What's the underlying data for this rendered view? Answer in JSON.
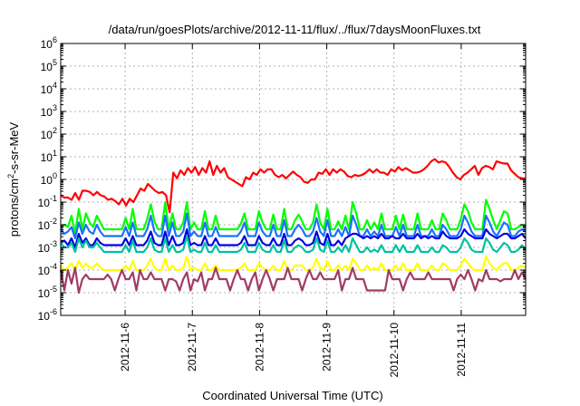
{
  "chart_data": {
    "type": "line",
    "title": "/data/run/goesPlots/archive/2012-11-11/flux/../flux/7daysMoonFluxes.txt",
    "xlabel": "Coordinated Universal Time (UTC)",
    "ylabel_parts": [
      "protons/cm",
      "2",
      "-s-sr-MeV"
    ],
    "yscale": "log",
    "ylim_exp": [
      -6,
      6
    ],
    "y_ticks": [
      {
        "base": "10",
        "exp": "-6"
      },
      {
        "base": "10",
        "exp": "-5"
      },
      {
        "base": "10",
        "exp": "-4"
      },
      {
        "base": "10",
        "exp": "-3"
      },
      {
        "base": "10",
        "exp": "-2"
      },
      {
        "base": "10",
        "exp": "-1"
      },
      {
        "base": "10",
        "exp": "0"
      },
      {
        "base": "10",
        "exp": "1"
      },
      {
        "base": "10",
        "exp": "2"
      },
      {
        "base": "10",
        "exp": "3"
      },
      {
        "base": "10",
        "exp": "4"
      },
      {
        "base": "10",
        "exp": "5"
      },
      {
        "base": "10",
        "exp": "6"
      }
    ],
    "x_start": "2012-11-05T01:00",
    "x_end": "2012-11-11T23:00",
    "x_ticks": [
      "2012-11-6",
      "2012-11-7",
      "2012-11-8",
      "2012-11-9",
      "2012-11-10",
      "2012-11-11"
    ],
    "grid": true,
    "series": [
      {
        "color": "#ff0000",
        "log_values": [
          -0.7,
          -0.8,
          -0.8,
          -0.9,
          -0.6,
          -0.9,
          -0.5,
          -0.5,
          -0.55,
          -0.7,
          -0.55,
          -0.7,
          -0.75,
          -0.9,
          -0.85,
          -0.95,
          -1.1,
          -0.85,
          -1.15,
          -0.85,
          -1.0,
          -0.7,
          -0.4,
          -0.5,
          -0.2,
          -0.35,
          -0.5,
          -0.6,
          -0.55,
          -0.7,
          -1.45,
          0.3,
          0.05,
          0.4,
          0.2,
          0.5,
          0.3,
          0.55,
          0.2,
          0.5,
          0.3,
          0.8,
          0.2,
          0.6,
          0.3,
          0.5,
          0.1,
          0.0,
          -0.1,
          -0.2,
          -0.3,
          0.1,
          0.0,
          0.3,
          0.2,
          0.45,
          0.3,
          0.45,
          0.45,
          0.2,
          0.1,
          0.2,
          0.05,
          0.2,
          0.35,
          0.2,
          0.1,
          -0.1,
          -0.15,
          0.0,
          0.0,
          0.3,
          0.25,
          0.45,
          0.2,
          0.45,
          0.3,
          0.45,
          0.35,
          0.15,
          0.1,
          0.2,
          0.15,
          0.2,
          0.3,
          0.45,
          0.3,
          0.45,
          0.3,
          0.3,
          0.2,
          0.45,
          0.35,
          0.55,
          0.4,
          0.5,
          0.4,
          0.3,
          0.3,
          0.35,
          0.45,
          0.6,
          0.8,
          0.9,
          0.75,
          0.8,
          0.75,
          0.55,
          0.3,
          0.1,
          0.0,
          0.2,
          0.3,
          0.45,
          0.6,
          0.2,
          0.5,
          0.6,
          0.55,
          0.45,
          0.8,
          0.75,
          0.7,
          0.7,
          0.4,
          0.25,
          0.1,
          0.05,
          0.05
        ]
      },
      {
        "color": "#00ff00",
        "log_values": [
          -2.1,
          -2.0,
          -2.1,
          -1.6,
          -2.4,
          -1.3,
          -2.2,
          -1.5,
          -1.9,
          -2.1,
          -1.6,
          -1.9,
          -2.2,
          -2.2,
          -2.2,
          -2.2,
          -2.2,
          -2.2,
          -1.7,
          -2.2,
          -1.3,
          -2.2,
          -2.2,
          -2.2,
          -1.75,
          -1.1,
          -1.85,
          -2.2,
          -2.2,
          -1.0,
          -2.2,
          -1.5,
          -2.2,
          -2.2,
          -1.9,
          -1.0,
          -2.2,
          -1.9,
          -2.2,
          -2.2,
          -1.4,
          -2.2,
          -2.2,
          -1.6,
          -2.2,
          -2.2,
          -2.2,
          -2.2,
          -2.2,
          -2.2,
          -1.95,
          -1.5,
          -2.2,
          -2.2,
          -2.2,
          -1.4,
          -1.9,
          -2.2,
          -2.2,
          -1.55,
          -2.2,
          -2.2,
          -1.3,
          -2.2,
          -2.2,
          -1.8,
          -1.55,
          -1.85,
          -2.2,
          -2.2,
          -1.9,
          -1.1,
          -1.9,
          -2.2,
          -1.3,
          -2.2,
          -2.2,
          -1.85,
          -2.2,
          -1.6,
          -2.2,
          -1.0,
          -1.5,
          -2.2,
          -2.2,
          -1.8,
          -2.2,
          -1.9,
          -2.2,
          -1.5,
          -2.2,
          -2.2,
          -2.2,
          -1.6,
          -2.2,
          -1.55,
          -2.2,
          -2.2,
          -2.2,
          -1.5,
          -2.2,
          -2.2,
          -2.2,
          -1.8,
          -2.2,
          -2.2,
          -1.5,
          -1.8,
          -2.2,
          -2.2,
          -2.2,
          -1.75,
          -1.1,
          -1.4,
          -1.9,
          -2.2,
          -2.2,
          -2.2,
          -0.9,
          -1.3,
          -1.8,
          -2.2,
          -1.8,
          -1.4,
          -1.5,
          -2.2,
          -2.2,
          -2.1,
          -2.0,
          -2.1
        ]
      },
      {
        "color": "#1a70ff",
        "log_values": [
          -2.2,
          -2.4,
          -2.3,
          -2.1,
          -2.6,
          -1.9,
          -2.4,
          -2.0,
          -2.3,
          -2.4,
          -2.0,
          -2.3,
          -2.5,
          -2.5,
          -2.5,
          -2.5,
          -2.5,
          -2.5,
          -2.1,
          -2.5,
          -1.9,
          -2.5,
          -2.5,
          -2.5,
          -2.2,
          -1.6,
          -2.3,
          -2.5,
          -2.5,
          -1.6,
          -2.5,
          -1.9,
          -2.5,
          -2.5,
          -2.3,
          -1.5,
          -2.5,
          -2.3,
          -2.5,
          -2.5,
          -1.9,
          -2.5,
          -2.5,
          -2.1,
          -2.5,
          -2.5,
          -2.5,
          -2.5,
          -2.5,
          -2.5,
          -2.3,
          -1.9,
          -2.5,
          -2.5,
          -2.5,
          -1.9,
          -2.3,
          -2.5,
          -2.5,
          -2.0,
          -2.5,
          -2.5,
          -1.8,
          -2.5,
          -2.5,
          -2.2,
          -2.0,
          -2.2,
          -2.5,
          -2.5,
          -2.3,
          -1.7,
          -2.3,
          -2.5,
          -1.8,
          -2.5,
          -2.5,
          -2.2,
          -2.5,
          -2.1,
          -2.5,
          -1.6,
          -2.0,
          -2.5,
          -2.5,
          -2.2,
          -2.5,
          -2.3,
          -2.5,
          -2.0,
          -2.5,
          -2.5,
          -2.5,
          -2.1,
          -2.5,
          -2.0,
          -2.5,
          -2.5,
          -2.5,
          -2.0,
          -2.5,
          -2.5,
          -2.5,
          -2.2,
          -2.5,
          -2.5,
          -2.0,
          -2.2,
          -2.5,
          -2.5,
          -2.5,
          -2.2,
          -1.6,
          -1.9,
          -2.3,
          -2.5,
          -2.5,
          -2.5,
          -1.6,
          -1.9,
          -2.3,
          -2.5,
          -2.2,
          -1.9,
          -2.0,
          -2.5,
          -2.5,
          -2.3,
          -2.2,
          -2.3
        ]
      },
      {
        "color": "#0000dd",
        "log_values": [
          -2.8,
          -2.7,
          -2.9,
          -2.6,
          -3.0,
          -2.4,
          -2.8,
          -2.6,
          -2.9,
          -2.9,
          -2.6,
          -2.8,
          -2.9,
          -2.9,
          -2.9,
          -2.9,
          -2.9,
          -2.9,
          -2.6,
          -2.9,
          -2.5,
          -2.9,
          -2.9,
          -2.9,
          -2.7,
          -2.3,
          -2.8,
          -2.9,
          -2.9,
          -2.3,
          -2.9,
          -2.5,
          -2.9,
          -2.9,
          -2.8,
          -2.2,
          -2.9,
          -2.8,
          -2.9,
          -2.9,
          -2.5,
          -2.9,
          -2.9,
          -2.6,
          -2.9,
          -2.9,
          -2.9,
          -2.9,
          -2.9,
          -2.9,
          -2.8,
          -2.5,
          -2.9,
          -2.9,
          -2.9,
          -2.5,
          -2.8,
          -2.9,
          -2.9,
          -2.6,
          -2.9,
          -2.9,
          -2.4,
          -2.9,
          -2.9,
          -2.7,
          -2.6,
          -2.7,
          -2.9,
          -2.9,
          -2.8,
          -2.3,
          -2.8,
          -2.9,
          -2.4,
          -2.9,
          -2.9,
          -2.7,
          -2.9,
          -2.6,
          -2.5,
          -2.4,
          -2.4,
          -2.5,
          -2.6,
          -2.5,
          -2.6,
          -2.5,
          -2.6,
          -2.4,
          -2.6,
          -2.6,
          -2.5,
          -2.6,
          -2.6,
          -2.4,
          -2.6,
          -2.6,
          -2.6,
          -2.4,
          -2.6,
          -2.5,
          -2.6,
          -2.5,
          -2.6,
          -2.6,
          -2.3,
          -2.5,
          -2.6,
          -2.6,
          -2.6,
          -2.5,
          -2.2,
          -2.4,
          -2.5,
          -2.6,
          -2.6,
          -2.6,
          -2.2,
          -2.4,
          -2.5,
          -2.6,
          -2.5,
          -2.4,
          -2.4,
          -2.6,
          -2.6,
          -2.5,
          -2.4,
          -2.6
        ]
      },
      {
        "color": "#00c0a0",
        "log_values": [
          -2.8,
          -3.0,
          -3.0,
          -2.8,
          -3.2,
          -2.6,
          -3.0,
          -2.7,
          -3.0,
          -3.0,
          -2.8,
          -3.0,
          -3.2,
          -3.2,
          -3.2,
          -3.2,
          -3.2,
          -3.2,
          -2.9,
          -3.2,
          -2.7,
          -3.2,
          -3.2,
          -3.2,
          -3.0,
          -2.6,
          -3.1,
          -3.2,
          -3.2,
          -2.6,
          -3.2,
          -2.9,
          -3.2,
          -3.2,
          -3.1,
          -2.5,
          -3.2,
          -3.1,
          -3.2,
          -3.2,
          -2.8,
          -3.2,
          -3.2,
          -2.9,
          -3.2,
          -3.2,
          -3.2,
          -3.2,
          -3.2,
          -3.2,
          -3.1,
          -2.8,
          -3.2,
          -3.2,
          -3.2,
          -2.8,
          -3.1,
          -3.2,
          -3.2,
          -2.9,
          -3.2,
          -3.2,
          -2.7,
          -3.2,
          -3.2,
          -3.0,
          -2.9,
          -3.0,
          -3.2,
          -3.2,
          -3.1,
          -2.6,
          -3.1,
          -3.2,
          -2.7,
          -3.2,
          -3.2,
          -3.0,
          -3.2,
          -2.9,
          -3.2,
          -2.6,
          -2.9,
          -3.2,
          -3.2,
          -3.0,
          -3.2,
          -3.1,
          -3.2,
          -2.9,
          -3.2,
          -3.2,
          -3.2,
          -2.9,
          -3.2,
          -2.9,
          -3.2,
          -3.2,
          -3.2,
          -2.9,
          -3.2,
          -3.2,
          -3.2,
          -3.0,
          -3.2,
          -3.2,
          -2.9,
          -3.0,
          -3.2,
          -3.2,
          -3.2,
          -3.0,
          -2.6,
          -2.8,
          -3.1,
          -3.2,
          -3.2,
          -3.2,
          -2.6,
          -2.8,
          -3.1,
          -3.2,
          -3.0,
          -2.8,
          -2.9,
          -3.2,
          -3.2,
          -3.1,
          -2.9,
          -3.1
        ]
      },
      {
        "color": "#ffff00",
        "log_values": [
          -3.8,
          -4.0,
          -3.9,
          -3.7,
          -4.0,
          -3.6,
          -3.9,
          -3.7,
          -3.9,
          -3.9,
          -3.7,
          -3.9,
          -4.0,
          -4.0,
          -4.0,
          -4.0,
          -4.0,
          -4.0,
          -3.8,
          -4.0,
          -3.6,
          -4.0,
          -4.0,
          -4.0,
          -3.8,
          -3.5,
          -3.9,
          -4.0,
          -4.0,
          -3.5,
          -4.0,
          -3.8,
          -4.0,
          -4.0,
          -3.9,
          -3.4,
          -4.0,
          -3.9,
          -4.0,
          -4.0,
          -3.7,
          -4.0,
          -4.0,
          -3.8,
          -4.0,
          -4.0,
          -4.0,
          -4.0,
          -4.0,
          -4.0,
          -3.9,
          -3.7,
          -4.0,
          -4.0,
          -4.0,
          -3.7,
          -3.9,
          -4.0,
          -4.0,
          -3.8,
          -4.0,
          -4.0,
          -3.6,
          -4.0,
          -4.0,
          -3.8,
          -3.8,
          -3.8,
          -4.0,
          -4.0,
          -3.9,
          -3.5,
          -3.9,
          -4.0,
          -3.6,
          -4.0,
          -4.0,
          -3.8,
          -4.0,
          -3.8,
          -4.0,
          -3.5,
          -3.7,
          -4.0,
          -4.0,
          -3.8,
          -4.0,
          -3.9,
          -4.0,
          -3.7,
          -4.0,
          -4.0,
          -4.0,
          -3.8,
          -4.0,
          -3.7,
          -4.0,
          -4.0,
          -4.0,
          -3.7,
          -4.0,
          -4.0,
          -4.0,
          -3.8,
          -4.0,
          -4.0,
          -3.7,
          -3.8,
          -4.0,
          -4.0,
          -4.0,
          -3.8,
          -3.5,
          -3.7,
          -3.9,
          -4.0,
          -4.0,
          -4.0,
          -3.4,
          -3.7,
          -3.9,
          -4.0,
          -3.8,
          -3.7,
          -3.7,
          -4.0,
          -4.0,
          -3.9,
          -3.8,
          -3.9
        ]
      },
      {
        "color": "#a03c64",
        "log_values": [
          -4.0,
          -4.9,
          -4.0,
          -4.6,
          -3.9,
          -5.0,
          -4.4,
          -4.2,
          -4.4,
          -4.4,
          -4.4,
          -4.4,
          -4.4,
          -4.2,
          -4.4,
          -4.9,
          -4.4,
          -4.0,
          -4.4,
          -4.4,
          -4.1,
          -4.9,
          -4.0,
          -4.4,
          -4.4,
          -4.1,
          -4.4,
          -4.4,
          -4.4,
          -4.9,
          -4.4,
          -4.4,
          -4.5,
          -4.9,
          -4.4,
          -4.1,
          -4.9,
          -4.4,
          -4.5,
          -4.1,
          -4.9,
          -4.4,
          -4.4,
          -3.9,
          -4.4,
          -4.4,
          -4.4,
          -4.9,
          -4.4,
          -4.0,
          -4.4,
          -4.4,
          -4.9,
          -4.4,
          -4.1,
          -4.9,
          -4.4,
          -4.0,
          -4.4,
          -4.9,
          -4.4,
          -4.4,
          -4.4,
          -3.9,
          -4.4,
          -4.4,
          -4.4,
          -4.9,
          -4.4,
          -4.0,
          -4.4,
          -4.4,
          -4.1,
          -4.4,
          -4.4,
          -4.4,
          -4.4,
          -4.0,
          -4.9,
          -4.4,
          -4.4,
          -3.9,
          -4.4,
          -4.4,
          -4.4,
          -4.9,
          -4.9,
          -4.9,
          -4.9,
          -4.9,
          -4.9,
          -4.0,
          -4.4,
          -4.4,
          -4.4,
          -4.9,
          -4.4,
          -4.1,
          -4.4,
          -4.4,
          -4.4,
          -4.4,
          -4.1,
          -4.4,
          -4.4,
          -4.4,
          -4.4,
          -4.4,
          -4.4,
          -4.9,
          -4.4,
          -4.2,
          -4.4,
          -4.0,
          -4.4,
          -4.9,
          -4.4,
          -4.5,
          -4.0,
          -4.4,
          -4.4,
          -4.4,
          -4.5,
          -4.4,
          -4.4,
          -4.4,
          -4.0,
          -4.4,
          -4.1,
          -4.4
        ]
      }
    ]
  }
}
